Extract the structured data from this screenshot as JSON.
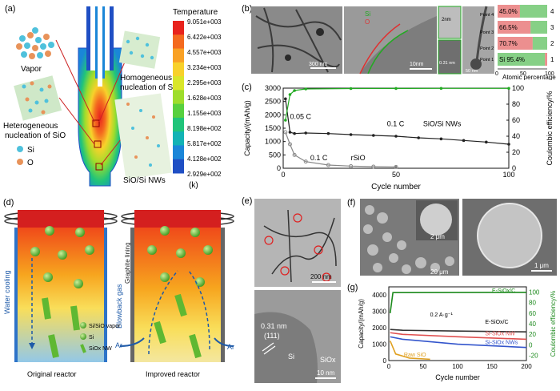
{
  "panel_a": {
    "label": "(a)",
    "vapor": "Vapor",
    "homo": "Homogeneous nucleation of Si",
    "hetero": "Heterogeneous nucleation of SiO",
    "si": "Si",
    "o": "O",
    "product": "SiO/Si NWs",
    "colorbar_title": "Temperature",
    "colorbar_unit": "(k)",
    "colorbar_ticks": [
      "9.051e+003",
      "6.422e+003",
      "4.557e+003",
      "3.234e+003",
      "2.295e+003",
      "1.628e+003",
      "1.155e+003",
      "8.198e+002",
      "5.817e+002",
      "4.128e+002",
      "2.929e+002"
    ],
    "colorbar_colors": [
      "#e8231d",
      "#f46a1f",
      "#f9a125",
      "#f8d12b",
      "#d9e62a",
      "#9edd2c",
      "#57d03f",
      "#20c47a",
      "#12b3b5",
      "#1a86d8",
      "#1f4fc4"
    ]
  },
  "panel_b": {
    "label": "(b)",
    "scale1": "300 nm",
    "scale2": "10nm",
    "scale3": "2nm",
    "scale4": "0.31 nm",
    "scale5": "50 nm",
    "legend_si": "Si",
    "legend_o": "O",
    "points": [
      "Point 4",
      "Point 3",
      "Point 2",
      "Point 1"
    ],
    "bar_labels": [
      "45.0%",
      "66.5%",
      "70.7%",
      "Si 95.4%"
    ],
    "bar_values": [
      45.0,
      66.5,
      70.7,
      95.4
    ],
    "bar_index": [
      "4",
      "3",
      "2",
      "1"
    ],
    "axis_ticks": [
      "0",
      "50",
      "100"
    ],
    "xlabel": "Atomic percentage",
    "si_color": "#22aa22",
    "o_color": "#dd3333"
  },
  "panel_c": {
    "label": "(c)",
    "ylabel": "Capacity/(mAh/g)",
    "y2label": "Coulombic efficiency/%",
    "xlabel": "Cycle number",
    "yticks": [
      "3000",
      "2500",
      "2000",
      "1500",
      "1000",
      "500",
      "0"
    ],
    "y2ticks": [
      "100",
      "80",
      "60",
      "40",
      "20",
      "0"
    ],
    "xticks": [
      "0",
      "50",
      "100"
    ],
    "ann_005": "0.05 C",
    "ann_01a": "0.1 C",
    "ann_sio": "SiO/Si NWs",
    "ann_01b": "0.1 C",
    "ann_rsio": "rSiO"
  },
  "chart_data": {
    "type": "line",
    "title": "",
    "xlabel": "Cycle number",
    "ylabel": "Capacity/(mAh/g)",
    "y2label": "Coulombic efficiency/%",
    "xlim": [
      0,
      100
    ],
    "ylim": [
      0,
      3000
    ],
    "y2lim": [
      0,
      100
    ],
    "series": [
      {
        "name": "SiO/Si NWs capacity",
        "x": [
          1,
          3,
          5,
          10,
          20,
          30,
          40,
          50,
          60,
          70,
          80,
          90,
          100
        ],
        "values": [
          2600,
          1350,
          1300,
          1320,
          1300,
          1260,
          1230,
          1200,
          1140,
          1100,
          1040,
          980,
          900
        ]
      },
      {
        "name": "rSiO capacity",
        "x": [
          1,
          3,
          5,
          10,
          20,
          30,
          40,
          50
        ],
        "values": [
          1350,
          900,
          500,
          250,
          120,
          80,
          60,
          50
        ]
      },
      {
        "name": "SiO/Si NWs coulombic efficiency",
        "x": [
          1,
          3,
          5,
          10,
          30,
          50,
          70,
          100
        ],
        "values": [
          60,
          92,
          97,
          99,
          99.5,
          99.6,
          99.7,
          99.7
        ]
      }
    ]
  },
  "panel_d": {
    "label": "(d)",
    "water": "Water cooling",
    "blowback": "Blowback gas",
    "graphite": "Graphite lining",
    "ar_left": "Ar",
    "ar_right": "Ar",
    "leg1": "Si/SiO vapor",
    "leg2": "Si",
    "leg3": "SiOx NW",
    "orig": "Original reactor",
    "improved": "Improved reactor"
  },
  "panel_e": {
    "label": "(e)",
    "scale1": "200 nm",
    "spacing": "0.31 nm",
    "plane": "(111)",
    "si": "Si",
    "siox": "SiOx",
    "scale2": "10 nm"
  },
  "panel_f": {
    "label": "(f)",
    "scale1": "2 μm",
    "scale2": "20 μm",
    "scale3": "1 μm"
  },
  "panel_g": {
    "label": "(g)",
    "ylabel": "Capacity/(mAh/g)",
    "y2label": "Coulombic efficiency/%",
    "xlabel": "Cycle number",
    "yticks": [
      "4000",
      "3000",
      "2000",
      "1000",
      "0"
    ],
    "y2ticks": [
      "100",
      "80",
      "60",
      "40",
      "20",
      "0",
      "-20"
    ],
    "xticks": [
      "0",
      "50",
      "100",
      "150",
      "200"
    ],
    "rate": "0.2 A·g⁻¹",
    "s1": "E-SiOx/C",
    "s2": "E-SiOx/C",
    "s3": "Si-SiOx NW",
    "s4": "Si-SiOx NWs",
    "s5": "Raw SiO"
  }
}
